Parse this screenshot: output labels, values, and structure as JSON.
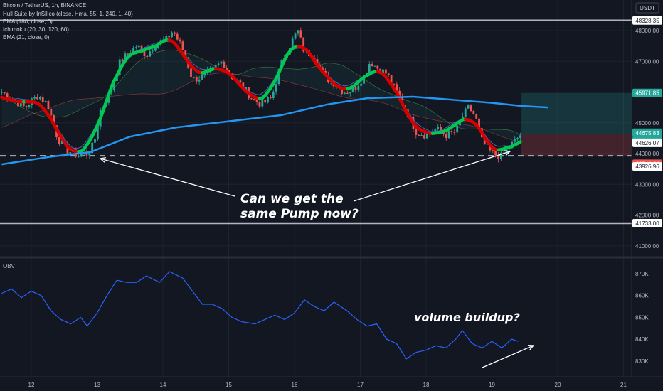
{
  "header": {
    "title": "Bitcoin / TetherUS, 1h, BINANCE",
    "currency": "USDT",
    "indicators": [
      "Hull Suite by InSilico (close, Hma, 55, 1, 240, 1, 40)",
      "EMA (180, close, 0)",
      "Ichimoku (20, 30, 120, 60)",
      "EMA (21, close, 0)"
    ]
  },
  "price_axis": {
    "ticks": [
      "48000.00",
      "47000.00",
      "46000.00",
      "45000.00",
      "44000.00",
      "43000.00",
      "42000.00",
      "41000.00"
    ],
    "tags": [
      {
        "label": "48328.35",
        "bg": "#ffffff",
        "fg": "#131722"
      },
      {
        "label": "45971.85",
        "bg": "#26a69a",
        "fg": "#ffffff"
      },
      {
        "label": "44675.83",
        "bg": "#26a69a",
        "fg": "#ffffff"
      },
      {
        "label": "45:58",
        "bg": "#26a69a",
        "fg": "#ffffff"
      },
      {
        "label": "44626.07",
        "bg": "#ffffff",
        "fg": "#131722"
      },
      {
        "label": "43944.44",
        "bg": "#ef5350",
        "fg": "#ffffff"
      },
      {
        "label": "43926.96",
        "bg": "#ffffff",
        "fg": "#131722"
      },
      {
        "label": "41733.00",
        "bg": "#ffffff",
        "fg": "#131722"
      }
    ]
  },
  "obv_panel": {
    "label": "OBV",
    "ticks": [
      "870K",
      "860K",
      "850K",
      "840K",
      "830K"
    ]
  },
  "time_axis": {
    "ticks": [
      "12",
      "13",
      "14",
      "15",
      "16",
      "17",
      "18",
      "19",
      "20",
      "21"
    ]
  },
  "annotations": {
    "pump_line1": "Can we get the",
    "pump_line2": "same Pump now?",
    "obv_note": "volume buildup?"
  },
  "colors": {
    "background": "#131722",
    "bull": "#26a69a",
    "bear": "#ef5350",
    "hull_up": "#00c853",
    "hull_down": "#d50000",
    "ema180": "#2196f3",
    "obv": "#2962ff"
  },
  "chart_data": [
    {
      "type": "candlestick",
      "title": "Bitcoin / TetherUS, 1h, BINANCE",
      "ylim": [
        40700,
        48300
      ],
      "x_ticks": [
        "12",
        "13",
        "14",
        "15",
        "16",
        "17",
        "18",
        "19",
        "20",
        "21"
      ],
      "horizontal_levels": [
        48328.35,
        43926.96,
        41733.0
      ],
      "key_prices": {
        "last": 44675.83,
        "hull": 44626.07,
        "ema21": 43944.44,
        "ema180": 45971.85
      },
      "price_path": [
        [
          11.55,
          46000
        ],
        [
          11.7,
          45800
        ],
        [
          11.9,
          45500
        ],
        [
          12.1,
          45900
        ],
        [
          12.25,
          45600
        ],
        [
          12.4,
          44500
        ],
        [
          12.55,
          44100
        ],
        [
          12.7,
          43950
        ],
        [
          12.85,
          44000
        ],
        [
          12.95,
          44300
        ],
        [
          13.05,
          45400
        ],
        [
          13.2,
          46000
        ],
        [
          13.35,
          47000
        ],
        [
          13.5,
          47300
        ],
        [
          13.6,
          47500
        ],
        [
          13.75,
          47200
        ],
        [
          13.9,
          47600
        ],
        [
          14.05,
          47700
        ],
        [
          14.15,
          48000
        ],
        [
          14.3,
          47400
        ],
        [
          14.45,
          46400
        ],
        [
          14.6,
          46500
        ],
        [
          14.75,
          46700
        ],
        [
          14.9,
          47000
        ],
        [
          15.05,
          46500
        ],
        [
          15.2,
          46200
        ],
        [
          15.35,
          45800
        ],
        [
          15.5,
          45600
        ],
        [
          15.65,
          45800
        ],
        [
          15.75,
          46600
        ],
        [
          15.85,
          47200
        ],
        [
          15.95,
          47600
        ],
        [
          16.05,
          48000
        ],
        [
          16.15,
          47300
        ],
        [
          16.3,
          47200
        ],
        [
          16.45,
          46500
        ],
        [
          16.6,
          46300
        ],
        [
          16.75,
          46000
        ],
        [
          16.9,
          46100
        ],
        [
          17.05,
          46500
        ],
        [
          17.15,
          47000
        ],
        [
          17.25,
          46800
        ],
        [
          17.4,
          46600
        ],
        [
          17.55,
          46000
        ],
        [
          17.7,
          45400
        ],
        [
          17.85,
          44700
        ],
        [
          18.0,
          44600
        ],
        [
          18.15,
          44800
        ],
        [
          18.3,
          44600
        ],
        [
          18.45,
          44700
        ],
        [
          18.55,
          45200
        ],
        [
          18.65,
          45500
        ],
        [
          18.75,
          45200
        ],
        [
          18.85,
          44400
        ],
        [
          19.0,
          44000
        ],
        [
          19.15,
          43900
        ],
        [
          19.3,
          44300
        ],
        [
          19.45,
          44650
        ]
      ]
    },
    {
      "type": "line",
      "title": "OBV",
      "y_unit": "K",
      "ylim": [
        825,
        875
      ],
      "x_ticks": [
        "12",
        "13",
        "14",
        "15",
        "16",
        "17",
        "18",
        "19",
        "20",
        "21"
      ],
      "series": [
        {
          "values": [
            [
              11.55,
              861
            ],
            [
              11.7,
              863
            ],
            [
              11.85,
              859
            ],
            [
              12.0,
              862
            ],
            [
              12.15,
              860
            ],
            [
              12.3,
              853
            ],
            [
              12.45,
              849
            ],
            [
              12.6,
              847
            ],
            [
              12.75,
              850
            ],
            [
              12.85,
              846
            ],
            [
              13.0,
              852
            ],
            [
              13.15,
              860
            ],
            [
              13.3,
              867
            ],
            [
              13.45,
              866
            ],
            [
              13.6,
              866
            ],
            [
              13.75,
              869
            ],
            [
              13.95,
              866
            ],
            [
              14.1,
              871
            ],
            [
              14.3,
              868
            ],
            [
              14.45,
              862
            ],
            [
              14.6,
              856
            ],
            [
              14.75,
              856
            ],
            [
              14.9,
              854
            ],
            [
              15.05,
              850
            ],
            [
              15.2,
              848
            ],
            [
              15.4,
              847
            ],
            [
              15.55,
              849
            ],
            [
              15.7,
              851
            ],
            [
              15.85,
              849
            ],
            [
              16.0,
              852
            ],
            [
              16.15,
              858
            ],
            [
              16.3,
              855
            ],
            [
              16.45,
              853
            ],
            [
              16.6,
              857
            ],
            [
              16.8,
              853
            ],
            [
              16.95,
              849
            ],
            [
              17.1,
              846
            ],
            [
              17.25,
              847
            ],
            [
              17.4,
              840
            ],
            [
              17.55,
              838
            ],
            [
              17.7,
              831
            ],
            [
              17.85,
              834
            ],
            [
              18.0,
              835
            ],
            [
              18.15,
              837
            ],
            [
              18.3,
              836
            ],
            [
              18.45,
              840
            ],
            [
              18.55,
              844
            ],
            [
              18.7,
              838
            ],
            [
              18.85,
              836
            ],
            [
              19.0,
              839
            ],
            [
              19.15,
              836
            ],
            [
              19.3,
              840
            ],
            [
              19.4,
              839
            ]
          ]
        }
      ]
    }
  ]
}
